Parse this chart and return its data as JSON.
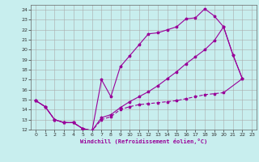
{
  "bg_color": "#c8eeee",
  "line_color": "#990099",
  "grid_color": "#aaaaaa",
  "xlabel": "Windchill (Refroidissement éolien,°C)",
  "xlim": [
    -0.5,
    23.5
  ],
  "ylim": [
    12,
    24.5
  ],
  "xticks": [
    0,
    1,
    2,
    3,
    4,
    5,
    6,
    7,
    8,
    9,
    10,
    11,
    12,
    13,
    14,
    15,
    16,
    17,
    18,
    19,
    20,
    21,
    22,
    23
  ],
  "yticks": [
    12,
    13,
    14,
    15,
    16,
    17,
    18,
    19,
    20,
    21,
    22,
    23,
    24
  ],
  "line1_x": [
    0,
    1,
    2,
    3,
    4,
    5,
    6,
    7,
    8,
    9,
    10,
    11,
    12,
    13,
    14,
    15,
    16,
    17,
    18,
    19,
    20,
    21,
    22
  ],
  "line1_y": [
    14.9,
    14.3,
    13.0,
    12.7,
    12.7,
    12.1,
    11.9,
    17.0,
    15.3,
    18.3,
    19.4,
    20.5,
    21.6,
    21.7,
    22.0,
    22.3,
    23.1,
    23.2,
    24.1,
    23.4,
    22.3,
    19.5,
    17.1
  ],
  "line3_x": [
    0,
    1,
    2,
    3,
    4,
    5,
    6,
    7,
    8,
    9,
    10,
    11,
    12,
    13,
    14,
    15,
    16,
    17,
    18,
    19,
    20,
    21,
    22
  ],
  "line3_y": [
    14.9,
    14.3,
    13.0,
    12.7,
    12.7,
    12.1,
    11.9,
    13.2,
    13.5,
    14.2,
    14.8,
    15.3,
    15.8,
    16.4,
    17.1,
    17.8,
    18.6,
    19.3,
    20.0,
    20.9,
    22.3,
    19.5,
    17.1
  ],
  "line2_x": [
    0,
    1,
    2,
    3,
    4,
    5,
    6,
    7,
    8,
    9,
    10,
    11,
    12,
    13,
    14,
    15,
    16,
    17,
    18,
    19,
    20
  ],
  "line2_y": [
    14.9,
    14.3,
    13.0,
    12.7,
    12.7,
    12.1,
    11.9,
    13.0,
    13.3,
    14.0,
    14.3,
    14.5,
    14.6,
    14.7,
    14.8,
    14.9,
    15.1,
    15.3,
    15.5,
    15.6,
    15.7
  ]
}
